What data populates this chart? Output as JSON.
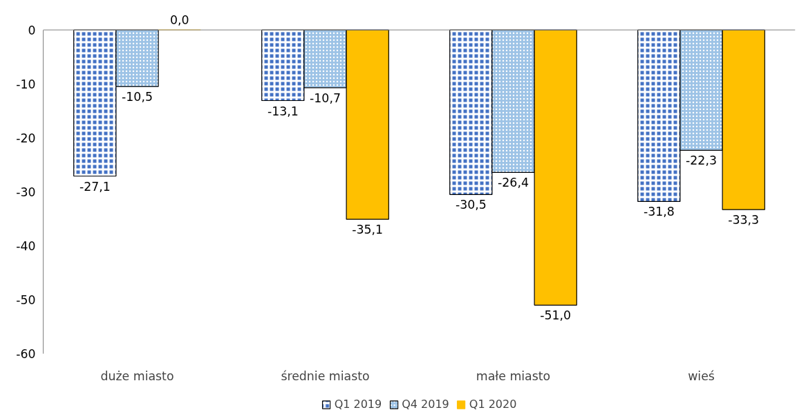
{
  "chart_data": {
    "type": "bar",
    "categories": [
      "duże miasto",
      "średnie miasto",
      "małe miasto",
      "wieś"
    ],
    "series": [
      {
        "name": "Q1 2019",
        "color": "#4472c4",
        "values": [
          -27.1,
          -13.1,
          -30.5,
          -31.8
        ],
        "value_labels": [
          "-27,1",
          "-13,1",
          "-30,5",
          "-31,8"
        ]
      },
      {
        "name": "Q4 2019",
        "color": "#9dc3e6",
        "values": [
          -10.5,
          -10.7,
          -26.4,
          -22.3
        ],
        "value_labels": [
          "-10,5",
          "-10,7",
          "-26,4",
          "-22,3"
        ]
      },
      {
        "name": "Q1 2020",
        "color": "#ffc000",
        "values": [
          0.0,
          -35.1,
          -51.0,
          -33.3
        ],
        "value_labels": [
          "0,0",
          "-35,1",
          "-51,0",
          "-33,3"
        ]
      }
    ],
    "ylim": [
      -60,
      0
    ],
    "yticks": [
      0,
      -10,
      -20,
      -30,
      -40,
      -50,
      -60
    ],
    "grid": false,
    "legend": "bottom"
  }
}
